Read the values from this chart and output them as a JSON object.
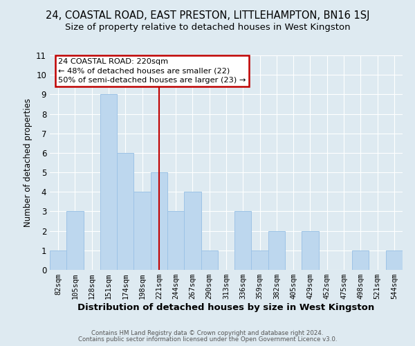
{
  "title": "24, COASTAL ROAD, EAST PRESTON, LITTLEHAMPTON, BN16 1SJ",
  "subtitle": "Size of property relative to detached houses in West Kingston",
  "xlabel": "Distribution of detached houses by size in West Kingston",
  "ylabel": "Number of detached properties",
  "categories": [
    "82sqm",
    "105sqm",
    "128sqm",
    "151sqm",
    "174sqm",
    "198sqm",
    "221sqm",
    "244sqm",
    "267sqm",
    "290sqm",
    "313sqm",
    "336sqm",
    "359sqm",
    "382sqm",
    "405sqm",
    "429sqm",
    "452sqm",
    "475sqm",
    "498sqm",
    "521sqm",
    "544sqm"
  ],
  "values": [
    1,
    3,
    0,
    9,
    6,
    4,
    5,
    3,
    4,
    1,
    0,
    3,
    1,
    2,
    0,
    2,
    0,
    0,
    1,
    0,
    1
  ],
  "bar_color": "#bdd7ee",
  "bar_edge_color": "#9dc3e6",
  "vline_x_index": 6,
  "vline_color": "#c00000",
  "annotation_title": "24 COASTAL ROAD: 220sqm",
  "annotation_line1": "← 48% of detached houses are smaller (22)",
  "annotation_line2": "50% of semi-detached houses are larger (23) →",
  "annotation_box_color": "#ffffff",
  "annotation_box_edge_color": "#c00000",
  "ylim": [
    0,
    11
  ],
  "yticks": [
    0,
    1,
    2,
    3,
    4,
    5,
    6,
    7,
    8,
    9,
    10,
    11
  ],
  "background_color": "#deeaf1",
  "footer1": "Contains HM Land Registry data © Crown copyright and database right 2024.",
  "footer2": "Contains public sector information licensed under the Open Government Licence v3.0.",
  "title_fontsize": 10.5,
  "subtitle_fontsize": 9.5,
  "xlabel_fontsize": 9.5,
  "ylabel_fontsize": 8.5,
  "grid_color": "#ffffff",
  "tick_label_fontsize": 7.5,
  "ytick_fontsize": 8.5
}
